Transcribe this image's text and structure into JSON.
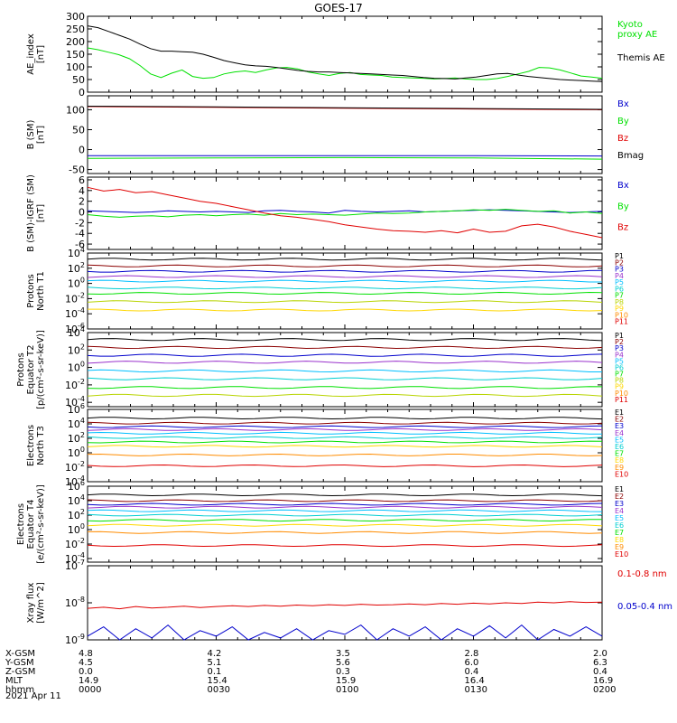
{
  "title": "GOES-17",
  "date_label": "2021 Apr 11",
  "colors": {
    "black": "#000000",
    "green": "#00e000",
    "red": "#e00000",
    "blue": "#0000cc"
  },
  "ephemeris": {
    "row_labels": [
      "X-GSM",
      "Y-GSM",
      "Z-GSM",
      "MLT",
      "hhmm"
    ],
    "columns": [
      [
        "4.8",
        "4.5",
        "0.0",
        "14.9",
        "0000"
      ],
      [
        "4.2",
        "5.1",
        "0.1",
        "15.4",
        "0030"
      ],
      [
        "3.5",
        "5.6",
        "0.3",
        "15.9",
        "0100"
      ],
      [
        "2.8",
        "6.0",
        "0.4",
        "16.4",
        "0130"
      ],
      [
        "2.0",
        "6.3",
        "0.4",
        "16.9",
        "0200"
      ]
    ]
  },
  "chart_data": [
    {
      "type": "line",
      "ylabel": "AE_index\n[nT]",
      "yticks": [
        "300",
        "250",
        "200",
        "150",
        "100",
        "50",
        "0"
      ],
      "ylim": [
        0,
        300
      ],
      "series": [
        {
          "name": "Kyoto\nproxy AE",
          "color": "#00e000",
          "values": [
            175,
            168,
            158,
            148,
            132,
            105,
            72,
            58,
            75,
            88,
            62,
            55,
            58,
            72,
            80,
            84,
            78,
            88,
            96,
            98,
            92,
            80,
            72,
            66,
            74,
            78,
            70,
            68,
            66,
            60,
            58,
            56,
            55,
            52,
            54,
            56,
            52,
            50,
            50,
            54,
            62,
            72,
            82,
            98,
            96,
            88,
            76,
            64,
            60,
            55
          ]
        },
        {
          "name": "Themis AE",
          "color": "#000000",
          "values": [
            262,
            255,
            240,
            225,
            210,
            190,
            172,
            162,
            162,
            160,
            158,
            150,
            138,
            125,
            116,
            108,
            104,
            102,
            98,
            92,
            86,
            82,
            80,
            80,
            78,
            76,
            74,
            72,
            70,
            68,
            66,
            62,
            58,
            55,
            54,
            52,
            56,
            60,
            66,
            72,
            74,
            68,
            62,
            58,
            54,
            50,
            48,
            46,
            44,
            42
          ]
        }
      ]
    },
    {
      "type": "line",
      "ylabel": "B (SM)\n[nT]",
      "yticks": [
        "100",
        "50",
        "0",
        "-50"
      ],
      "ylim": [
        -60,
        135
      ],
      "series": [
        {
          "name": "Bx",
          "color": "#0000cc",
          "values": [
            -15,
            -15,
            -15,
            -15,
            -16
          ]
        },
        {
          "name": "By",
          "color": "#00e000",
          "values": [
            -22,
            -21,
            -20,
            -21,
            -24
          ]
        },
        {
          "name": "Bz",
          "color": "#e00000",
          "values": [
            108,
            106,
            104,
            102,
            100
          ]
        },
        {
          "name": "Bmag",
          "color": "#000000",
          "values": [
            109,
            107,
            105,
            103,
            101
          ]
        }
      ]
    },
    {
      "type": "line",
      "ylabel": "B (SM)-IGRF (SM)\n[nT]",
      "yticks": [
        "6",
        "4",
        "2",
        "0",
        "-2",
        "-4",
        "-6"
      ],
      "ylim": [
        -7,
        6.5
      ],
      "series": [
        {
          "name": "Bx",
          "color": "#0000cc",
          "values": [
            0.2,
            0.1,
            0.0,
            -0.1,
            0.0,
            0.2,
            0.1,
            0.0,
            0.1,
            0.0,
            -0.1,
            0.2,
            0.3,
            0.1,
            0.0,
            -0.2,
            0.3,
            0.1,
            0.0,
            0.1,
            0.2,
            0.0,
            0.1,
            0.2,
            0.3,
            0.4,
            0.3,
            0.2,
            0.1,
            0.0,
            -0.1,
            0.0,
            0.1
          ]
        },
        {
          "name": "By",
          "color": "#00e000",
          "values": [
            -0.5,
            -0.8,
            -1.0,
            -0.8,
            -0.7,
            -0.9,
            -0.6,
            -0.5,
            -0.7,
            -0.5,
            -0.4,
            -0.6,
            -0.3,
            -0.5,
            -0.4,
            -0.5,
            -0.6,
            -0.4,
            -0.2,
            -0.3,
            -0.2,
            0.0,
            0.1,
            0.2,
            0.4,
            0.3,
            0.5,
            0.3,
            0.1,
            0.2,
            -0.2,
            0.0,
            -0.3
          ]
        },
        {
          "name": "Bz",
          "color": "#e00000",
          "values": [
            4.6,
            3.9,
            4.2,
            3.6,
            3.8,
            3.2,
            2.6,
            2.0,
            1.6,
            1.0,
            0.4,
            -0.2,
            -0.7,
            -1.0,
            -1.4,
            -1.8,
            -2.4,
            -2.8,
            -3.2,
            -3.5,
            -3.6,
            -3.8,
            -3.5,
            -3.9,
            -3.2,
            -3.8,
            -3.6,
            -2.6,
            -2.3,
            -2.8,
            -3.6,
            -4.2,
            -4.8
          ]
        }
      ]
    },
    {
      "type": "line",
      "ylabel": "Protons\nNorth T1",
      "yticks": [
        "10^4",
        "10^2",
        "10^0",
        "10^-2",
        "10^-4",
        "10^-6"
      ],
      "ylim_log10": [
        -6,
        4
      ],
      "series": [
        {
          "name": "P1",
          "color": "#000000",
          "level": 3.2
        },
        {
          "name": "P2",
          "color": "#8b0000",
          "level": 2.3
        },
        {
          "name": "P3",
          "color": "#0000cc",
          "level": 1.6
        },
        {
          "name": "P4",
          "color": "#9932cc",
          "level": 0.9
        },
        {
          "name": "P5",
          "color": "#00bfff",
          "level": 0.3
        },
        {
          "name": "P6",
          "color": "#00ced1",
          "level": -0.6
        },
        {
          "name": "P7",
          "color": "#00e000",
          "level": -1.3
        },
        {
          "name": "P8",
          "color": "#b8d400",
          "level": -2.4
        },
        {
          "name": "P9",
          "color": "#ffd700",
          "level": -3.5
        },
        {
          "name": "P10",
          "color": "#ff8c00",
          "level": null
        },
        {
          "name": "P11",
          "color": "#e00000",
          "level": null
        }
      ]
    },
    {
      "type": "line",
      "ylabel": "Protons\nEquator T2\n[p/(cm²-s-sr-keV)]",
      "yticks": [
        "10^4",
        "10^2",
        "10^0",
        "10^-2",
        "10^-4"
      ],
      "ylim_log10": [
        -4.5,
        4
      ],
      "series": [
        {
          "name": "P1",
          "color": "#000000",
          "level": 3.2
        },
        {
          "name": "P2",
          "color": "#8b0000",
          "level": 2.3
        },
        {
          "name": "P3",
          "color": "#0000cc",
          "level": 1.4
        },
        {
          "name": "P4",
          "color": "#9932cc",
          "level": 0.6
        },
        {
          "name": "P5",
          "color": "#00bfff",
          "level": -0.4
        },
        {
          "name": "P6",
          "color": "#00ced1",
          "level": -1.3
        },
        {
          "name": "P7",
          "color": "#00e000",
          "level": -2.3
        },
        {
          "name": "P8",
          "color": "#b8d400",
          "level": -3.2
        },
        {
          "name": "P9",
          "color": "#ffd700",
          "level": null
        },
        {
          "name": "P10",
          "color": "#ff8c00",
          "level": null
        },
        {
          "name": "P11",
          "color": "#e00000",
          "level": null
        }
      ]
    },
    {
      "type": "line",
      "ylabel": "Electrons\nNorth T3",
      "yticks": [
        "10^6",
        "10^4",
        "10^2",
        "10^0",
        "10^-2",
        "10^-4"
      ],
      "ylim_log10": [
        -4,
        6
      ],
      "series": [
        {
          "name": "E1",
          "color": "#000000",
          "level": 4.8
        },
        {
          "name": "E2",
          "color": "#8b0000",
          "level": 4.1
        },
        {
          "name": "E3",
          "color": "#0000cc",
          "level": 3.6
        },
        {
          "name": "E4",
          "color": "#9932cc",
          "level": 3.2
        },
        {
          "name": "E5",
          "color": "#00bfff",
          "level": 2.7
        },
        {
          "name": "E6",
          "color": "#00ced1",
          "level": 2.1
        },
        {
          "name": "E7",
          "color": "#00e000",
          "level": 1.5
        },
        {
          "name": "E8",
          "color": "#ffd700",
          "level": 0.9
        },
        {
          "name": "E9",
          "color": "#ff8c00",
          "level": -0.3
        },
        {
          "name": "E10",
          "color": "#e00000",
          "level": -1.8
        }
      ]
    },
    {
      "type": "line",
      "ylabel": "Electrons\nEquator T4\n[e/(cm²-s-sr-keV)]",
      "yticks": [
        "10^6",
        "10^4",
        "10^2",
        "10^0",
        "10^-2",
        "10^-4"
      ],
      "ylim_log10": [
        -4.5,
        6
      ],
      "series": [
        {
          "name": "E1",
          "color": "#000000",
          "level": 4.8
        },
        {
          "name": "E2",
          "color": "#8b0000",
          "level": 4.0
        },
        {
          "name": "E3",
          "color": "#0000cc",
          "level": 3.5
        },
        {
          "name": "E4",
          "color": "#9932cc",
          "level": 3.1
        },
        {
          "name": "E5",
          "color": "#00bfff",
          "level": 2.6
        },
        {
          "name": "E6",
          "color": "#00ced1",
          "level": 2.0
        },
        {
          "name": "E7",
          "color": "#00e000",
          "level": 1.3
        },
        {
          "name": "E8",
          "color": "#ffd700",
          "level": 0.6
        },
        {
          "name": "E9",
          "color": "#ff8c00",
          "level": -0.4
        },
        {
          "name": "E10",
          "color": "#e00000",
          "level": -2.2
        }
      ]
    },
    {
      "type": "line",
      "ylabel": "Xray flux\n[W/m^2]",
      "yticks": [
        "10^-7",
        "10^-8",
        "10^-9"
      ],
      "ylim_log10": [
        -9,
        -7
      ],
      "series": [
        {
          "name": "0.1-0.8 nm",
          "color": "#e00000",
          "values": [
            -8.15,
            -8.12,
            -8.16,
            -8.1,
            -8.14,
            -8.12,
            -8.09,
            -8.13,
            -8.1,
            -8.08,
            -8.1,
            -8.07,
            -8.09,
            -8.06,
            -8.08,
            -8.05,
            -8.07,
            -8.04,
            -8.06,
            -8.05,
            -8.03,
            -8.05,
            -8.02,
            -8.04,
            -8.01,
            -8.03,
            -8.0,
            -8.02,
            -7.98,
            -8.0,
            -7.97,
            -7.99,
            -7.98
          ]
        },
        {
          "name": "0.05-0.4 nm",
          "color": "#0000cc",
          "values": [
            -8.9,
            -8.65,
            -9.0,
            -8.7,
            -8.95,
            -8.6,
            -9.0,
            -8.75,
            -8.9,
            -8.65,
            -9.0,
            -8.8,
            -8.95,
            -8.7,
            -9.0,
            -8.75,
            -8.85,
            -8.6,
            -9.0,
            -8.7,
            -8.9,
            -8.65,
            -9.0,
            -8.7,
            -8.9,
            -8.62,
            -8.95,
            -8.6,
            -9.0,
            -8.72,
            -8.9,
            -8.65,
            -8.9
          ]
        }
      ]
    }
  ]
}
